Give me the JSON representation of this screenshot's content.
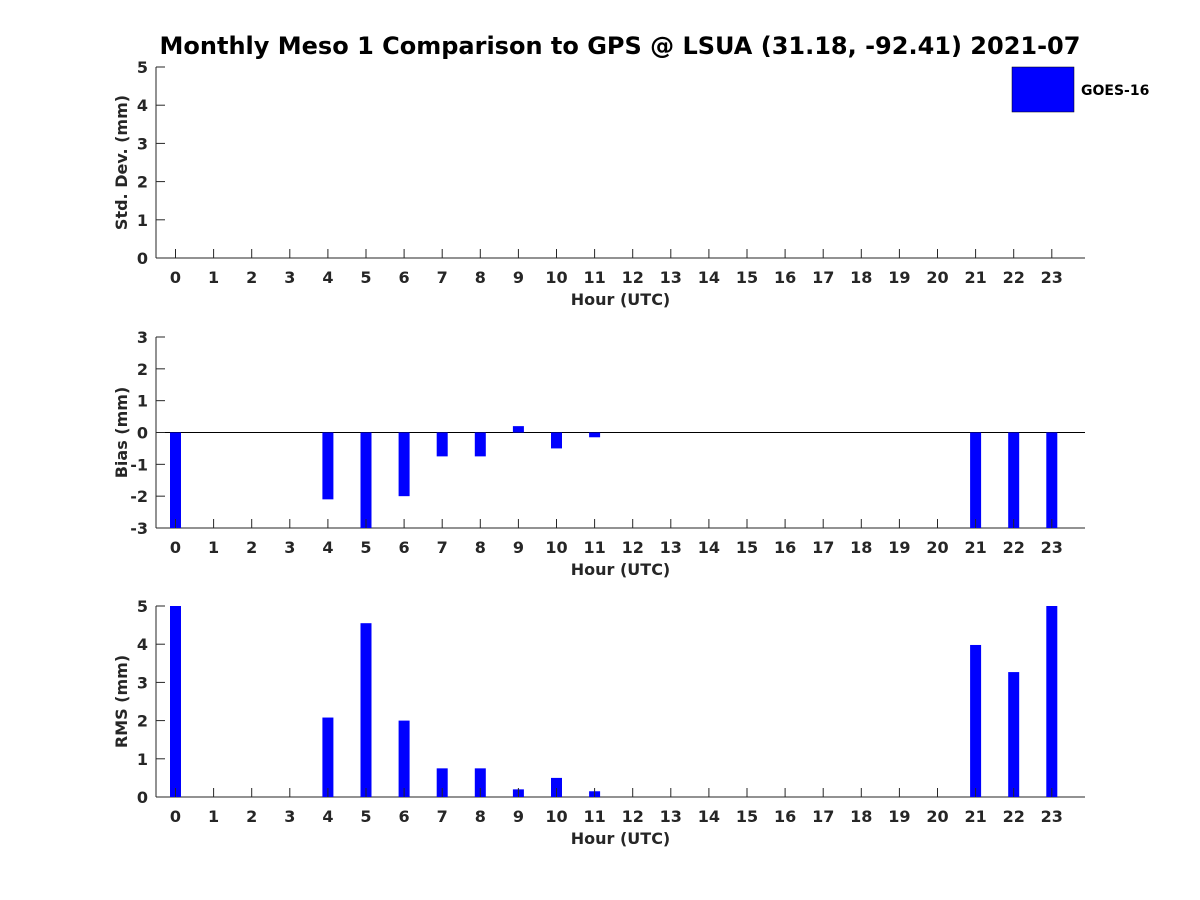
{
  "chart_data": {
    "type": "bar",
    "title": "Monthly Meso 1 Comparison to GPS @ LSUA (31.18, -92.41) 2021-07",
    "legend": {
      "placement": "top-right",
      "entries": [
        {
          "name": "GOES-16",
          "color": "#0000ff"
        }
      ]
    },
    "categories": [
      "0",
      "1",
      "2",
      "3",
      "4",
      "5",
      "6",
      "7",
      "8",
      "9",
      "10",
      "11",
      "12",
      "13",
      "14",
      "15",
      "16",
      "17",
      "18",
      "19",
      "20",
      "21",
      "22",
      "23"
    ],
    "panels": [
      {
        "xlabel": "Hour (UTC)",
        "ylabel": "Std. Dev. (mm)",
        "ylim": [
          0,
          5
        ],
        "yticks": [
          0,
          1,
          2,
          3,
          4,
          5
        ],
        "grid": false,
        "series": [
          {
            "name": "GOES-16",
            "values": [
              null,
              null,
              null,
              null,
              null,
              null,
              null,
              null,
              null,
              null,
              null,
              null,
              null,
              null,
              null,
              null,
              null,
              null,
              null,
              null,
              null,
              null,
              null,
              null
            ]
          }
        ]
      },
      {
        "xlabel": "Hour (UTC)",
        "ylabel": "Bias (mm)",
        "ylim": [
          -3,
          3
        ],
        "yticks": [
          -3,
          -2,
          -1,
          0,
          1,
          2,
          3
        ],
        "zero_line": true,
        "grid": false,
        "series": [
          {
            "name": "GOES-16",
            "values": [
              -3.0,
              null,
              null,
              null,
              -2.1,
              -3.0,
              -2.0,
              -0.75,
              -0.75,
              0.2,
              -0.5,
              -0.15,
              null,
              null,
              null,
              null,
              null,
              null,
              null,
              null,
              null,
              -3.0,
              -3.0,
              -3.0
            ]
          }
        ]
      },
      {
        "xlabel": "Hour (UTC)",
        "ylabel": "RMS (mm)",
        "ylim": [
          0,
          5
        ],
        "yticks": [
          0,
          1,
          2,
          3,
          4,
          5
        ],
        "grid": false,
        "series": [
          {
            "name": "GOES-16",
            "values": [
              5.0,
              null,
              null,
              null,
              2.08,
              4.55,
              2.0,
              0.75,
              0.75,
              0.2,
              0.5,
              0.15,
              null,
              null,
              null,
              null,
              null,
              null,
              null,
              null,
              null,
              3.98,
              3.27,
              5.0
            ]
          }
        ]
      }
    ]
  }
}
